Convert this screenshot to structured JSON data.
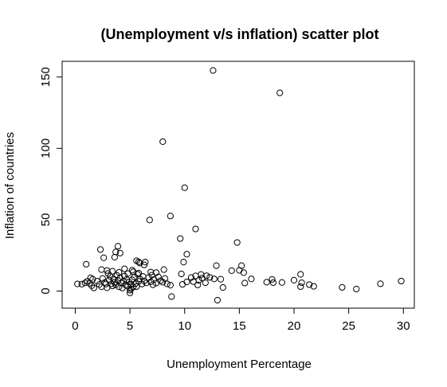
{
  "chart_data": {
    "type": "scatter",
    "title": "(Unemployment v/s inflation) scatter plot",
    "xlabel": "Unemployment Percentage",
    "ylabel": "Inflation of countries",
    "xlim": [
      -1.2,
      31
    ],
    "ylim": [
      -12,
      161
    ],
    "xticks": [
      0,
      5,
      10,
      15,
      20,
      25,
      30
    ],
    "yticks": [
      0,
      50,
      100,
      150
    ],
    "xtick_labels": [
      "0",
      "5",
      "10",
      "15",
      "20",
      "25",
      "30"
    ],
    "ytick_labels": [
      "0",
      "50",
      "100",
      "150"
    ],
    "grid": false,
    "legend": false,
    "points": [
      [
        12.6,
        154.6
      ],
      [
        18.7,
        138.9
      ],
      [
        8.0,
        104.7
      ],
      [
        10.0,
        72.4
      ],
      [
        8.7,
        52.6
      ],
      [
        6.8,
        49.8
      ],
      [
        11.0,
        43.5
      ],
      [
        9.6,
        36.8
      ],
      [
        14.8,
        34.0
      ],
      [
        3.9,
        31.4
      ],
      [
        2.3,
        29.1
      ],
      [
        3.7,
        27.4
      ],
      [
        4.1,
        26.6
      ],
      [
        10.2,
        25.8
      ],
      [
        2.6,
        23.3
      ],
      [
        3.6,
        23.7
      ],
      [
        5.6,
        21.2
      ],
      [
        5.8,
        20.4
      ],
      [
        6.4,
        20.3
      ],
      [
        5.9,
        19.6
      ],
      [
        6.3,
        18.3
      ],
      [
        1.0,
        18.8
      ],
      [
        9.9,
        20.3
      ],
      [
        12.9,
        17.8
      ],
      [
        15.2,
        17.8
      ],
      [
        14.3,
        14.3
      ],
      [
        15.0,
        14.5
      ],
      [
        8.1,
        15.0
      ],
      [
        2.4,
        15.0
      ],
      [
        2.9,
        14.4
      ],
      [
        3.4,
        13.9
      ],
      [
        4.5,
        15.6
      ],
      [
        5.2,
        14.6
      ],
      [
        5.8,
        12.6
      ],
      [
        6.9,
        13.3
      ],
      [
        7.4,
        12.9
      ],
      [
        9.7,
        12.0
      ],
      [
        11.5,
        11.6
      ],
      [
        12.0,
        10.7
      ],
      [
        11.0,
        10.6
      ],
      [
        12.3,
        9.6
      ],
      [
        12.7,
        8.5
      ],
      [
        13.3,
        8.3
      ],
      [
        15.4,
        12.9
      ],
      [
        15.5,
        5.6
      ],
      [
        16.1,
        8.5
      ],
      [
        17.5,
        6.2
      ],
      [
        18.1,
        5.9
      ],
      [
        18.0,
        8.2
      ],
      [
        18.9,
        6.0
      ],
      [
        20.0,
        7.6
      ],
      [
        20.6,
        11.7
      ],
      [
        20.7,
        5.8
      ],
      [
        20.6,
        3.1
      ],
      [
        21.4,
        4.5
      ],
      [
        21.8,
        3.3
      ],
      [
        24.4,
        2.6
      ],
      [
        25.7,
        1.4
      ],
      [
        27.9,
        5.1
      ],
      [
        29.8,
        7.0
      ],
      [
        13.5,
        2.5
      ],
      [
        13.0,
        -6.4
      ],
      [
        8.8,
        -3.9
      ],
      [
        8.7,
        4.1
      ],
      [
        9.8,
        4.7
      ],
      [
        10.2,
        6.4
      ],
      [
        10.6,
        9.5
      ],
      [
        11.3,
        7.5
      ],
      [
        11.6,
        9.1
      ],
      [
        11.9,
        5.8
      ],
      [
        11.2,
        4.3
      ],
      [
        10.8,
        6.6
      ],
      [
        0.2,
        5.0
      ],
      [
        0.6,
        4.8
      ],
      [
        0.9,
        5.7
      ],
      [
        1.3,
        5.4
      ],
      [
        1.5,
        3.8
      ],
      [
        1.7,
        2.2
      ],
      [
        1.6,
        8.3
      ],
      [
        2.0,
        6.9
      ],
      [
        2.2,
        4.6
      ],
      [
        2.4,
        3.0
      ],
      [
        2.7,
        6.0
      ],
      [
        2.8,
        4.9
      ],
      [
        2.9,
        2.3
      ],
      [
        3.1,
        7.7
      ],
      [
        3.2,
        10.3
      ],
      [
        3.3,
        5.1
      ],
      [
        3.4,
        3.6
      ],
      [
        3.5,
        8.5
      ],
      [
        3.6,
        6.1
      ],
      [
        3.7,
        4.4
      ],
      [
        3.8,
        11.0
      ],
      [
        3.9,
        7.4
      ],
      [
        4.0,
        3.0
      ],
      [
        4.1,
        9.2
      ],
      [
        4.2,
        5.6
      ],
      [
        4.3,
        2.1
      ],
      [
        4.4,
        6.9
      ],
      [
        4.5,
        10.5
      ],
      [
        4.6,
        4.3
      ],
      [
        4.7,
        8.1
      ],
      [
        4.8,
        3.4
      ],
      [
        4.9,
        6.3
      ],
      [
        5.0,
        0.6
      ],
      [
        5.0,
        -1.3
      ],
      [
        5.1,
        1.5
      ],
      [
        5.1,
        4.7
      ],
      [
        5.2,
        7.9
      ],
      [
        5.3,
        2.8
      ],
      [
        5.4,
        9.8
      ],
      [
        5.5,
        5.2
      ],
      [
        5.6,
        3.1
      ],
      [
        5.7,
        11.7
      ],
      [
        5.8,
        6.8
      ],
      [
        5.9,
        8.6
      ],
      [
        6.1,
        4.9
      ],
      [
        6.2,
        10.2
      ],
      [
        6.3,
        7.1
      ],
      [
        6.5,
        5.7
      ],
      [
        6.7,
        9.4
      ],
      [
        6.9,
        6.5
      ],
      [
        7.0,
        11.1
      ],
      [
        7.1,
        4.4
      ],
      [
        7.2,
        8.0
      ],
      [
        7.4,
        5.6
      ],
      [
        7.6,
        9.9
      ],
      [
        7.8,
        7.2
      ],
      [
        8.0,
        6.2
      ],
      [
        8.2,
        8.8
      ],
      [
        8.4,
        5.0
      ],
      [
        1.1,
        6.8
      ],
      [
        1.4,
        9.2
      ],
      [
        2.5,
        8.8
      ],
      [
        3.0,
        12.3
      ],
      [
        4.0,
        13.1
      ],
      [
        4.8,
        12.2
      ],
      [
        5.3,
        13.5
      ]
    ]
  }
}
